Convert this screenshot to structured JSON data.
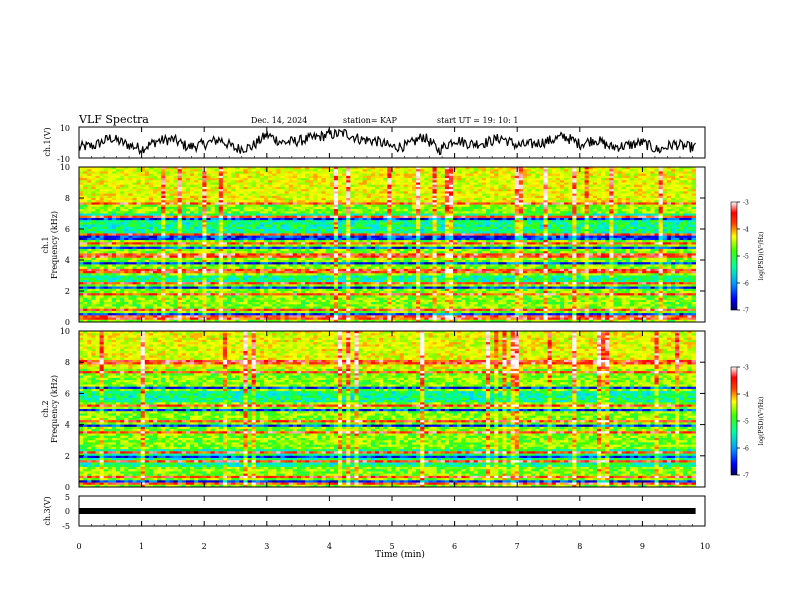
{
  "header": {
    "title": "VLF Spectra",
    "date": "Dec. 14, 2024",
    "station": "station= KAP",
    "start": "start  UT  =    19: 10: 1"
  },
  "colors": {
    "spectrum_stops": [
      "#00007a",
      "#0000ff",
      "#0080ff",
      "#00e0ff",
      "#00ff80",
      "#40ff00",
      "#c8ff00",
      "#ffff00",
      "#ff8000",
      "#ff0000",
      "#ffd0d0",
      "#ffffff"
    ]
  },
  "chart_data": [
    {
      "type": "line",
      "id": "ch1-waveform",
      "ylabel": "ch.1(V)",
      "ylim": [
        -10,
        10
      ],
      "yticks": [
        "10",
        "-10"
      ],
      "xlim": [
        0,
        10
      ],
      "x": [
        0,
        0.25,
        0.5,
        0.75,
        1,
        1.25,
        1.5,
        1.75,
        2,
        2.25,
        2.5,
        2.75,
        3,
        3.25,
        3.5,
        3.75,
        4,
        4.25,
        4.5,
        4.75,
        5,
        5.25,
        5.5,
        5.75,
        6,
        6.25,
        6.5,
        6.75,
        7,
        7.25,
        7.5,
        7.75,
        8,
        8.25,
        8.5,
        8.75,
        9,
        9.25,
        9.5,
        9.75
      ],
      "values": [
        -3,
        -2,
        3,
        -1,
        -4,
        1,
        2,
        -3,
        -1,
        2,
        -4,
        -3,
        5,
        0,
        1,
        3,
        5,
        6,
        2,
        1,
        -3,
        -2,
        4,
        -5,
        2,
        -1,
        0,
        3,
        -2,
        -1,
        1,
        4,
        -1,
        2,
        -3,
        -2,
        0,
        -5,
        -1,
        -3
      ]
    },
    {
      "type": "heatmap",
      "id": "ch1-spectrogram",
      "ylabel": "Frequency (kHz)",
      "ylabel2": "ch.1",
      "xlim": [
        0,
        9.85
      ],
      "ylim": [
        0,
        10
      ],
      "yticks": [
        "0",
        "2",
        "4",
        "6",
        "8",
        "10"
      ],
      "bright_bands_khz": [
        0.3,
        0.8,
        1.8,
        2.5,
        3.3,
        4.3,
        5.1,
        5.6,
        6.7,
        7.6
      ],
      "dark_bands_khz": [
        0.5,
        2.2,
        3.8,
        4.8,
        5.3,
        5.5,
        6.6
      ],
      "blue_zones_khz": [
        [
          2.6,
          3.0
        ],
        [
          5.7,
          7.0
        ]
      ],
      "colorbar": {
        "label": "log(PSD)(V²/Hz)",
        "ticks": [
          "-3",
          "-4",
          "-5",
          "-6",
          "-7"
        ],
        "range": [
          -7,
          -3
        ]
      }
    },
    {
      "type": "heatmap",
      "id": "ch2-spectrogram",
      "ylabel": "Frequency (kHz)",
      "ylabel2": "ch.2",
      "xlim": [
        0,
        9.85
      ],
      "ylim": [
        0,
        10
      ],
      "yticks": [
        "0",
        "2",
        "4",
        "6",
        "8",
        "10"
      ],
      "bright_bands_khz": [
        0.2,
        0.6,
        1.6,
        2.2,
        3.5,
        4.2,
        5.2,
        6.4,
        7.4,
        8.0
      ],
      "dark_bands_khz": [
        0.4,
        1.9,
        3.9,
        4.9,
        6.3
      ],
      "blue_zones_khz": [
        [
          1.3,
          2.4
        ],
        [
          5.4,
          6.2
        ]
      ],
      "colorbar": {
        "label": "log(PSD)(V²/Hz)",
        "ticks": [
          "-3",
          "-4",
          "-5",
          "-6",
          "-7"
        ],
        "range": [
          -7,
          -3
        ]
      }
    },
    {
      "type": "line",
      "id": "ch3-waveform",
      "ylabel": "ch.3(V)",
      "ylim": [
        -5,
        5
      ],
      "yticks": [
        "5",
        "0",
        "-5"
      ],
      "xlim": [
        0,
        10
      ],
      "x": [
        0,
        9.85
      ],
      "values": [
        0,
        0
      ]
    }
  ],
  "xaxis": {
    "label": "Time  (min)",
    "ticks": [
      "0",
      "1",
      "2",
      "3",
      "4",
      "5",
      "6",
      "7",
      "8",
      "9",
      "10"
    ]
  }
}
